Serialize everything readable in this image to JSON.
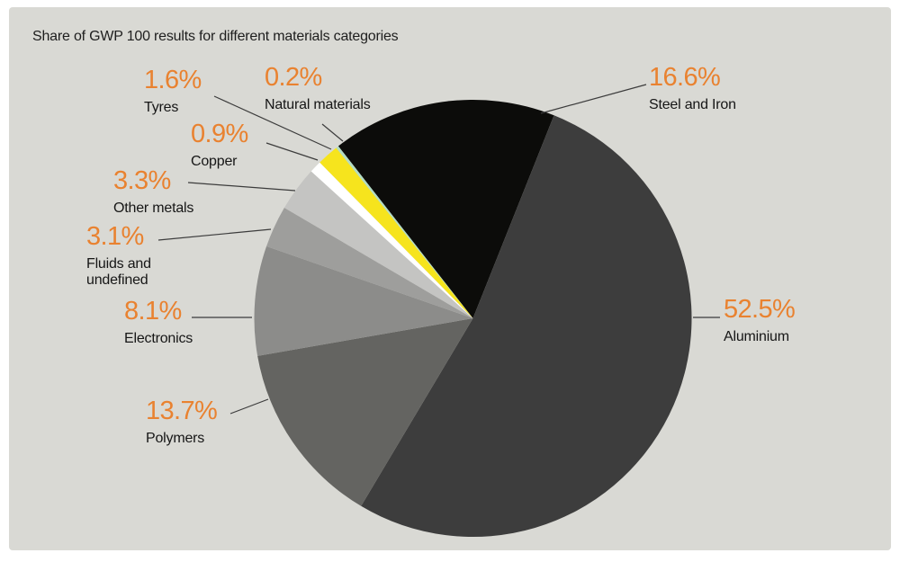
{
  "title": "Share of GWP 100 results for different materials categories",
  "panel_background": "#d9d9d4",
  "percent_accent_color": "#e98230",
  "chart_data": {
    "type": "pie",
    "title": "Share of GWP 100 results for different materials categories",
    "value_suffix": "%",
    "start_angle_deg": -38,
    "direction": "clockwise",
    "legend_position": "callout-labels",
    "slices": [
      {
        "id": "steel-and-iron",
        "label": "Steel and Iron",
        "value": 16.6,
        "display": "16.6%",
        "color": "#0c0c0a"
      },
      {
        "id": "aluminium",
        "label": "Aluminium",
        "value": 52.5,
        "display": "52.5%",
        "color": "#3d3d3d"
      },
      {
        "id": "polymers",
        "label": "Polymers",
        "value": 13.7,
        "display": "13.7%",
        "color": "#646461"
      },
      {
        "id": "electronics",
        "label": "Electronics",
        "value": 8.1,
        "display": "8.1%",
        "color": "#8c8c8a"
      },
      {
        "id": "fluids-and-undefined",
        "label": "Fluids and undefined",
        "value": 3.1,
        "display": "3.1%",
        "color": "#9e9e9c"
      },
      {
        "id": "other-metals",
        "label": "Other metals",
        "value": 3.3,
        "display": "3.3%",
        "color": "#c4c4c2"
      },
      {
        "id": "copper",
        "label": "Copper",
        "value": 0.9,
        "display": "0.9%",
        "color": "#ffffff"
      },
      {
        "id": "tyres",
        "label": "Tyres",
        "value": 1.6,
        "display": "1.6%",
        "color": "#f6e41d"
      },
      {
        "id": "natural-materials",
        "label": "Natural materials",
        "value": 0.2,
        "display": "0.2%",
        "color": "#b2dbc3"
      }
    ]
  }
}
